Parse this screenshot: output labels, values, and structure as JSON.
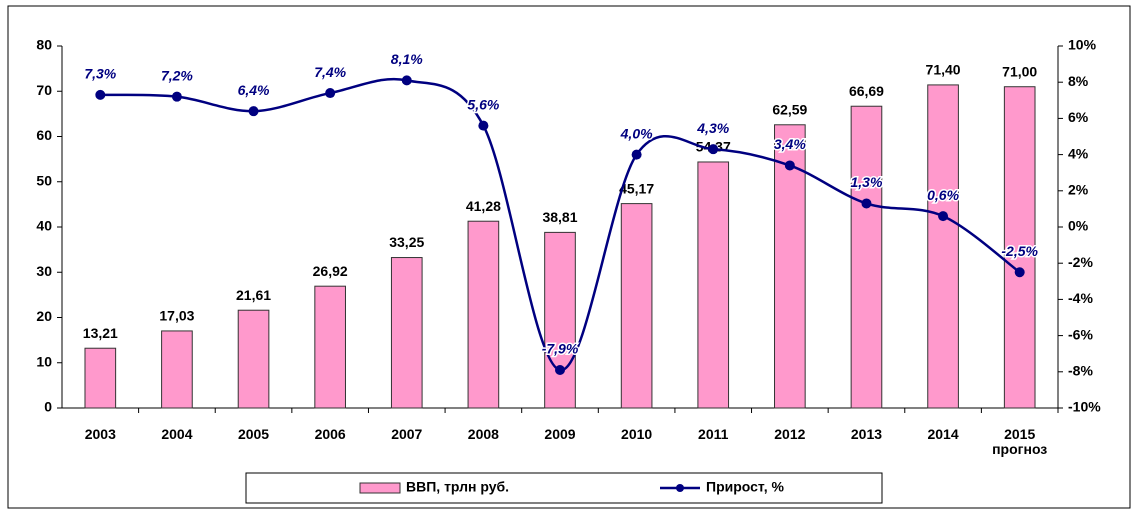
{
  "chart_data": {
    "type": "bar_line",
    "categories": [
      "2003",
      "2004",
      "2005",
      "2006",
      "2007",
      "2008",
      "2009",
      "2010",
      "2011",
      "2012",
      "2013",
      "2014",
      "2015 прогноз"
    ],
    "series": [
      {
        "name": "ВВП, трлн руб.",
        "type": "bar",
        "color": "#ff99cc",
        "axis": "y",
        "values": [
          13.21,
          17.03,
          21.61,
          26.92,
          33.25,
          41.28,
          38.81,
          45.17,
          54.37,
          62.59,
          66.69,
          71.4,
          71.0
        ],
        "value_labels": [
          "13,21",
          "17,03",
          "21,61",
          "26,92",
          "33,25",
          "41,28",
          "38,81",
          "45,17",
          "54,37",
          "62,59",
          "66,69",
          "71,40",
          "71,00"
        ]
      },
      {
        "name": "Прирост, %",
        "type": "line",
        "color": "#000080",
        "axis": "y2",
        "values": [
          7.3,
          7.2,
          6.4,
          7.4,
          8.1,
          5.6,
          -7.9,
          4.0,
          4.3,
          3.4,
          1.3,
          0.6,
          -2.5
        ],
        "value_labels": [
          "7,3%",
          "7,2%",
          "6,4%",
          "7,4%",
          "8,1%",
          "5,6%",
          "-7,9%",
          "4,0%",
          "4,3%",
          "3,4%",
          "1,3%",
          "0,6%",
          "-2,5%"
        ]
      }
    ],
    "ylim": [
      0,
      80
    ],
    "yticks": [
      0,
      10,
      20,
      30,
      40,
      50,
      60,
      70,
      80
    ],
    "y2lim": [
      -10,
      10
    ],
    "y2ticks": [
      {
        "value": -10,
        "label": "-10%"
      },
      {
        "value": -8,
        "label": "-8%"
      },
      {
        "value": -6,
        "label": "-6%"
      },
      {
        "value": -4,
        "label": "-4%"
      },
      {
        "value": -2,
        "label": "-2%"
      },
      {
        "value": 0,
        "label": "0%"
      },
      {
        "value": 2,
        "label": "2%"
      },
      {
        "value": 4,
        "label": "4%"
      },
      {
        "value": 6,
        "label": "6%"
      },
      {
        "value": 8,
        "label": "8%"
      },
      {
        "value": 10,
        "label": "10%"
      }
    ],
    "legend": "bottom"
  }
}
